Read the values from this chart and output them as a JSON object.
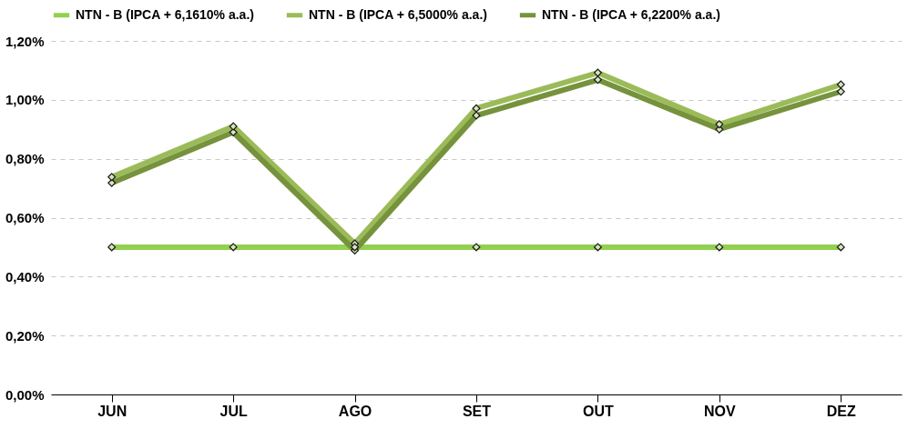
{
  "chart_data": {
    "type": "line",
    "categories": [
      "JUN",
      "JUL",
      "AGO",
      "SET",
      "OUT",
      "NOV",
      "DEZ"
    ],
    "series": [
      {
        "name": "NTN - B  (IPCA + 6,1610% a.a.)",
        "color": "#92d050",
        "values": [
          0.5,
          0.5,
          0.5,
          0.5,
          0.5,
          0.5,
          0.5
        ]
      },
      {
        "name": "NTN - B  (IPCA + 6,5000% a.a.)",
        "color": "#9bbb59",
        "values": [
          0.738,
          0.91,
          0.512,
          0.971,
          1.092,
          0.917,
          1.052
        ]
      },
      {
        "name": "NTN - B  (IPCA + 6,2200% a.a.)",
        "color": "#76923c",
        "values": [
          0.718,
          0.89,
          0.489,
          0.947,
          1.068,
          0.9,
          1.028
        ]
      }
    ],
    "ylim": [
      0,
      1.2
    ],
    "yticks": [
      {
        "value": 0,
        "label": "0,00%"
      },
      {
        "value": 0.2,
        "label": "0,20%"
      },
      {
        "value": 0.4,
        "label": "0,40%"
      },
      {
        "value": 0.6,
        "label": "0,60%"
      },
      {
        "value": 0.8,
        "label": "0,80%"
      },
      {
        "value": 1.0,
        "label": "1,00%"
      },
      {
        "value": 1.2,
        "label": "1,20%"
      }
    ],
    "grid": "y",
    "legend": "top",
    "marker": "diamond",
    "line_style": "solid"
  }
}
